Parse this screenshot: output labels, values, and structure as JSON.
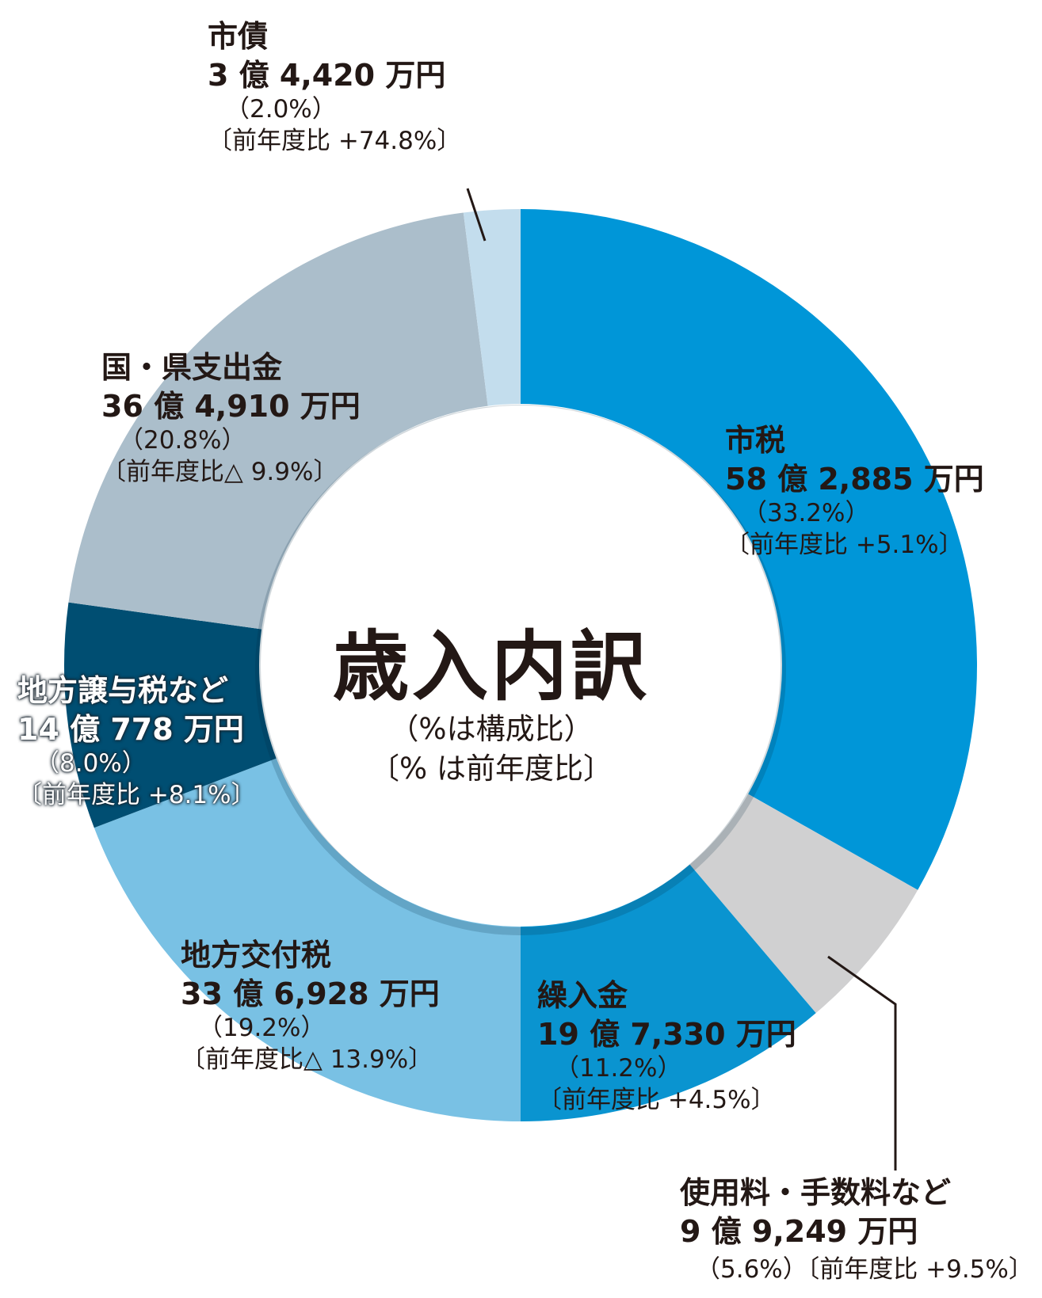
{
  "chart_data": {
    "type": "pie",
    "title": "歳入内訳",
    "subtitle_lines": [
      "（%は構成比）",
      "〔% は前年度比〕"
    ],
    "legend": "none",
    "slices": [
      {
        "name": "市税",
        "amount_label": "58 億 2,885 万円",
        "value": 33.2,
        "pct_label": "（33.2%）",
        "yoy_label": "〔前年度比 +5.1%〕",
        "color": "#0096d8"
      },
      {
        "name": "使用料・手数料など",
        "amount_label": "9 億 9,249 万円",
        "value": 5.6,
        "pct_label": "（5.6%）",
        "yoy_label": "〔前年度比 +9.5%〕",
        "color": "#d0d0d1"
      },
      {
        "name": "繰入金",
        "amount_label": "19 億 7,330 万円",
        "value": 11.2,
        "pct_label": "（11.2%）",
        "yoy_label": "〔前年度比 +4.5%〕",
        "color": "#0a94d0"
      },
      {
        "name": "地方交付税",
        "amount_label": "33 億 6,928 万円",
        "value": 19.2,
        "pct_label": "（19.2%）",
        "yoy_label": "〔前年度比△ 13.9%〕",
        "color": "#79c1e4"
      },
      {
        "name": "地方譲与税など",
        "amount_label": "14 億 778 万円",
        "value": 8.0,
        "pct_label": "（8.0%）",
        "yoy_label": "〔前年度比 +8.1%〕",
        "color": "#004e72"
      },
      {
        "name": "国・県支出金",
        "amount_label": "36 億 4,910 万円",
        "value": 20.8,
        "pct_label": "（20.8%）",
        "yoy_label": "〔前年度比△ 9.9%〕",
        "color": "#abbecb"
      },
      {
        "name": "市債",
        "amount_label": "3 億 4,420 万円",
        "value": 2.0,
        "pct_label": "（2.0%）",
        "yoy_label": "〔前年度比 +74.8%〕",
        "color": "#c3dded"
      }
    ]
  }
}
